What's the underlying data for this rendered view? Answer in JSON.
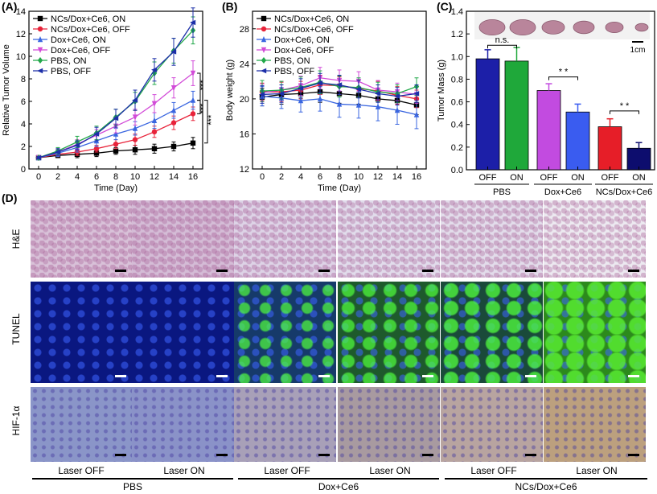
{
  "panels": {
    "A": "(A)",
    "B": "(B)",
    "C": "(C)",
    "D": "(D)"
  },
  "chart_data": [
    {
      "id": "A",
      "type": "line",
      "title": "",
      "xlabel": "Time (Day)",
      "ylabel": "Relative Tumor Volume",
      "xlim": [
        -1,
        17
      ],
      "ylim": [
        0,
        14
      ],
      "xticks": [
        0,
        2,
        4,
        6,
        8,
        10,
        12,
        14,
        16
      ],
      "yticks": [
        0,
        2,
        4,
        6,
        8,
        10,
        12,
        14
      ],
      "x": [
        0,
        2,
        4,
        6,
        8,
        10,
        12,
        14,
        16
      ],
      "series": [
        {
          "name": "NCs/Dox+Ce6, ON",
          "color": "#000000",
          "marker": "square",
          "values": [
            1.0,
            1.2,
            1.3,
            1.4,
            1.6,
            1.7,
            1.8,
            2.0,
            2.3
          ],
          "err": [
            0.1,
            0.2,
            0.3,
            0.3,
            0.3,
            0.4,
            0.4,
            0.4,
            0.5
          ]
        },
        {
          "name": "NCs/Dox+Ce6, OFF",
          "color": "#e8233a",
          "marker": "circle",
          "values": [
            1.0,
            1.3,
            1.5,
            1.8,
            2.2,
            2.6,
            3.3,
            4.1,
            4.9
          ],
          "err": [
            0.1,
            0.2,
            0.3,
            0.3,
            0.4,
            0.5,
            0.5,
            0.6,
            0.6
          ]
        },
        {
          "name": "Dox+Ce6, ON",
          "color": "#3a66e0",
          "marker": "triangle",
          "values": [
            1.0,
            1.4,
            1.9,
            2.5,
            3.1,
            3.6,
            4.3,
            5.2,
            6.1
          ],
          "err": [
            0.1,
            0.3,
            0.4,
            0.5,
            0.5,
            0.6,
            0.7,
            0.7,
            0.8
          ]
        },
        {
          "name": "Dox+Ce6, OFF",
          "color": "#d24bd8",
          "marker": "triangle-down",
          "values": [
            1.0,
            1.5,
            2.2,
            3.0,
            3.8,
            4.6,
            5.8,
            7.2,
            8.5
          ],
          "err": [
            0.1,
            0.3,
            0.4,
            0.5,
            0.6,
            0.7,
            0.8,
            0.9,
            1.1
          ]
        },
        {
          "name": "PBS, ON",
          "color": "#22a84a",
          "marker": "diamond",
          "values": [
            1.0,
            1.6,
            2.4,
            3.2,
            4.6,
            6.0,
            8.5,
            10.5,
            12.3
          ],
          "err": [
            0.1,
            0.3,
            0.5,
            0.6,
            0.7,
            0.8,
            1.0,
            1.1,
            1.2
          ]
        },
        {
          "name": "PBS, OFF",
          "color": "#1c2fa8",
          "marker": "diamond-left",
          "values": [
            1.0,
            1.5,
            2.1,
            3.1,
            4.5,
            6.1,
            8.8,
            10.4,
            13.0
          ],
          "err": [
            0.1,
            0.3,
            0.4,
            0.6,
            0.8,
            0.9,
            1.0,
            1.2,
            1.3
          ]
        }
      ],
      "annotations": [
        "***",
        "***",
        "***"
      ],
      "legend": "top-left"
    },
    {
      "id": "B",
      "type": "line",
      "title": "",
      "xlabel": "Time (Day)",
      "ylabel": "Body weight (g)",
      "xlim": [
        -1,
        17
      ],
      "ylim": [
        12,
        30
      ],
      "xticks": [
        0,
        2,
        4,
        6,
        8,
        10,
        12,
        14,
        16
      ],
      "yticks": [
        12,
        16,
        20,
        24,
        28
      ],
      "x": [
        0,
        2,
        4,
        6,
        8,
        10,
        12,
        14,
        16
      ],
      "series": [
        {
          "name": "NCs/Dox+Ce6, ON",
          "color": "#000000",
          "marker": "square",
          "values": [
            20.2,
            20.5,
            20.6,
            20.8,
            20.6,
            20.4,
            20.0,
            19.8,
            19.3
          ],
          "err": [
            1.0,
            1.1,
            1.0,
            1.2,
            1.1,
            1.0,
            1.1,
            1.2,
            1.1
          ]
        },
        {
          "name": "NCs/Dox+Ce6, OFF",
          "color": "#e8233a",
          "marker": "circle",
          "values": [
            20.8,
            20.8,
            21.0,
            21.6,
            21.5,
            21.2,
            20.9,
            20.4,
            20.0
          ],
          "err": [
            1.0,
            1.1,
            1.0,
            1.1,
            1.0,
            1.0,
            1.1,
            1.0,
            1.0
          ]
        },
        {
          "name": "Dox+Ce6, ON",
          "color": "#3a66e0",
          "marker": "triangle",
          "values": [
            20.3,
            20.1,
            19.8,
            20.0,
            19.4,
            19.3,
            19.1,
            18.7,
            18.2
          ],
          "err": [
            1.1,
            1.2,
            1.3,
            1.4,
            1.5,
            1.5,
            1.6,
            1.6,
            1.6
          ]
        },
        {
          "name": "Dox+Ce6, OFF",
          "color": "#d24bd8",
          "marker": "triangle-down",
          "values": [
            20.7,
            21.0,
            21.5,
            22.4,
            22.1,
            22.0,
            21.0,
            20.8,
            20.5
          ],
          "err": [
            1.0,
            1.0,
            1.1,
            1.2,
            1.2,
            1.1,
            1.1,
            1.0,
            1.0
          ]
        },
        {
          "name": "PBS, ON",
          "color": "#22a84a",
          "marker": "diamond",
          "values": [
            20.9,
            21.0,
            21.3,
            21.9,
            21.4,
            21.3,
            20.8,
            20.6,
            21.4
          ],
          "err": [
            1.2,
            1.0,
            1.2,
            1.3,
            1.2,
            1.1,
            1.1,
            1.0,
            1.0
          ]
        },
        {
          "name": "PBS, OFF",
          "color": "#1c2fa8",
          "marker": "diamond-left",
          "values": [
            20.5,
            20.6,
            21.2,
            21.8,
            21.6,
            21.1,
            20.6,
            20.3,
            20.6
          ],
          "err": [
            1.0,
            1.0,
            1.1,
            1.1,
            1.1,
            1.0,
            1.0,
            1.0,
            1.0
          ]
        }
      ],
      "legend": "top-left"
    },
    {
      "id": "C",
      "type": "bar",
      "title": "",
      "xlabel": "",
      "ylabel": "Tumor Mass (g)",
      "ylim": [
        0,
        1.4
      ],
      "yticks": [
        0.0,
        0.2,
        0.4,
        0.6,
        0.8,
        1.0,
        1.2,
        1.4
      ],
      "categories": [
        "OFF",
        "ON",
        "OFF",
        "ON",
        "OFF",
        "ON"
      ],
      "groups": [
        "PBS",
        "Dox+Ce6",
        "NCs/Dox+Ce6"
      ],
      "values": [
        0.98,
        0.96,
        0.7,
        0.51,
        0.38,
        0.19
      ],
      "err": [
        0.08,
        0.12,
        0.06,
        0.07,
        0.07,
        0.05
      ],
      "colors": [
        "#1c1fa8",
        "#1fa83a",
        "#c24be0",
        "#3a5cf0",
        "#e61e28",
        "#0d0d6e"
      ],
      "annotations": [
        "n.s.",
        "* *",
        "* *"
      ],
      "scale_bar": "1cm"
    }
  ],
  "panel_d": {
    "row_labels": [
      "H&E",
      "TUNEL",
      "HIF-1α"
    ],
    "col_labels": [
      "Laser OFF",
      "Laser ON",
      "Laser OFF",
      "Laser ON",
      "Laser OFF",
      "Laser ON"
    ],
    "groups": [
      "PBS",
      "Dox+Ce6",
      "NCs/Dox+Ce6"
    ]
  }
}
